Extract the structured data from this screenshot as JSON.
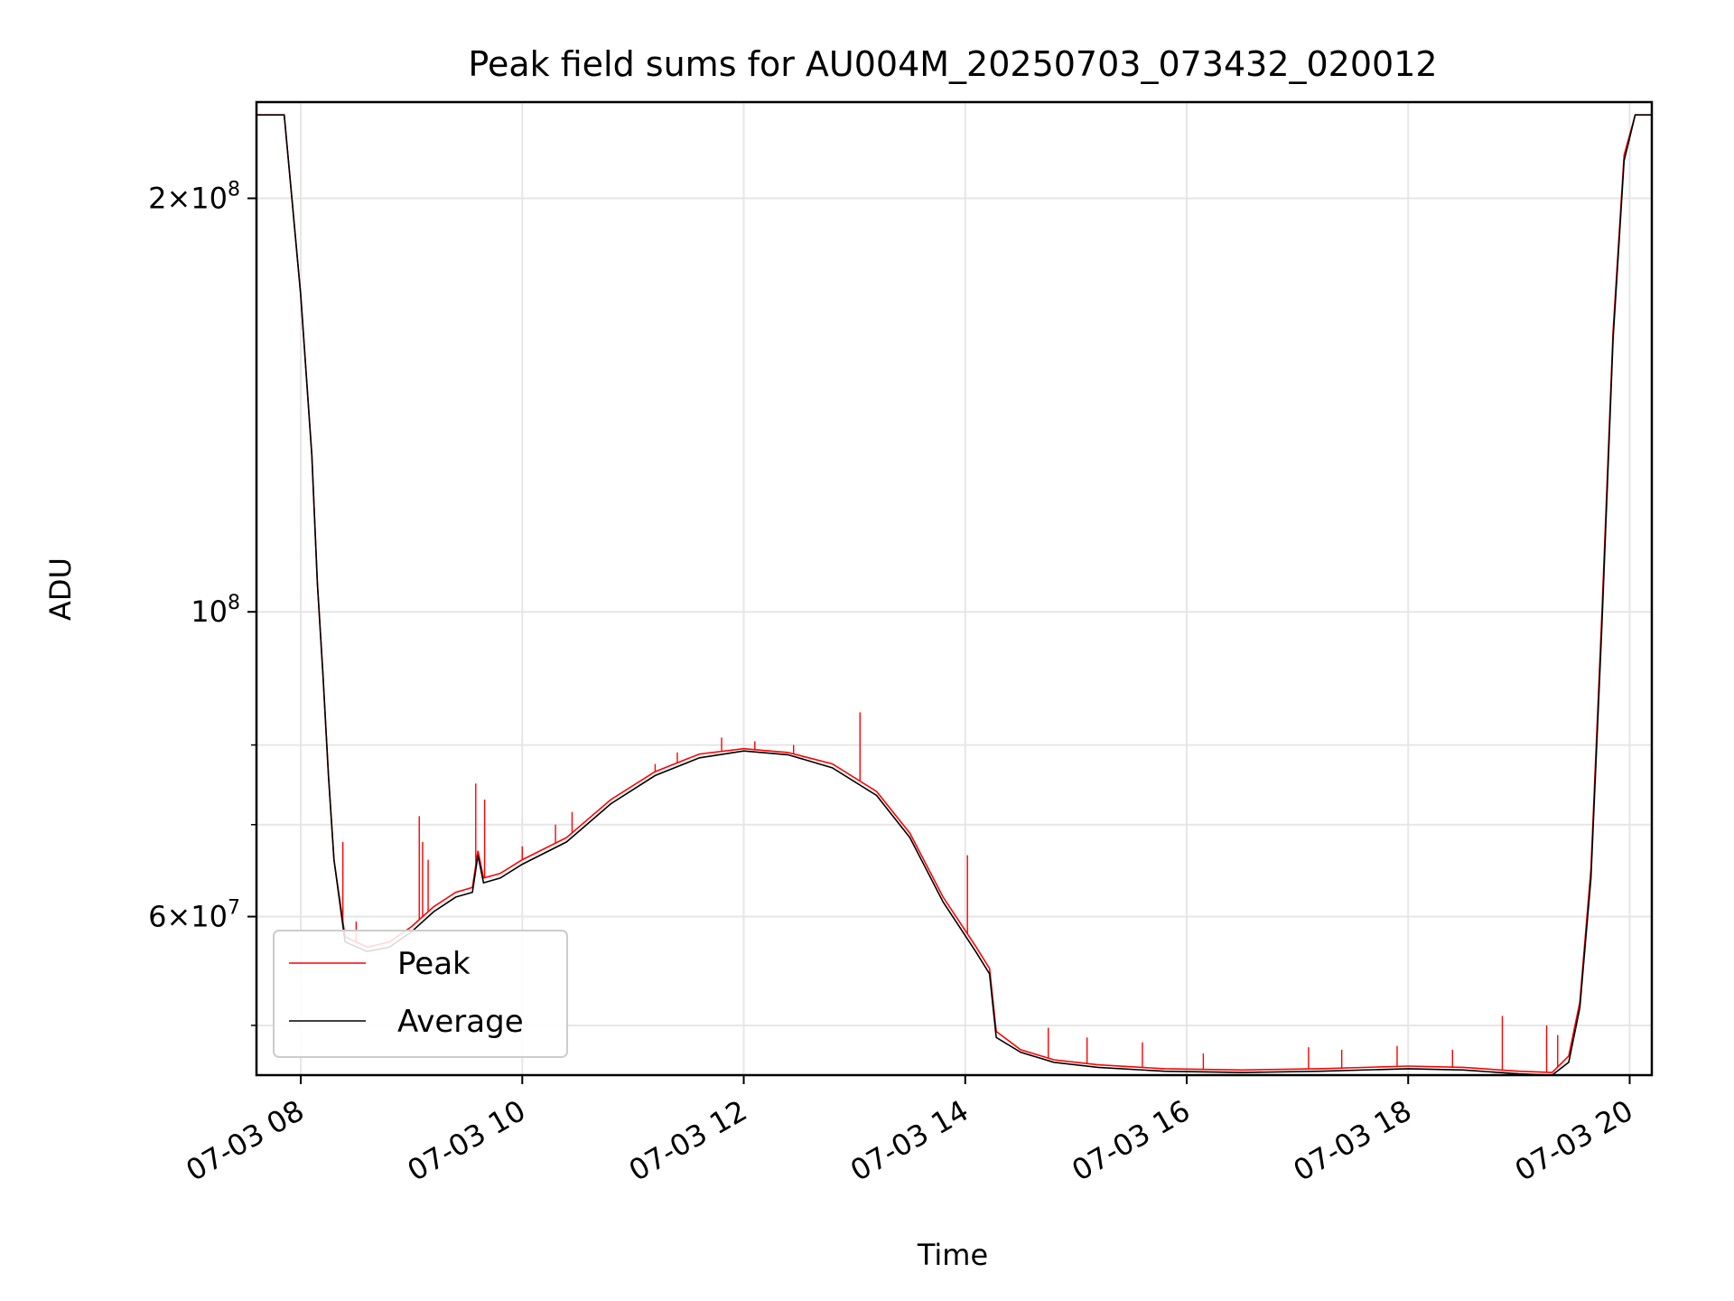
{
  "chart_data": {
    "type": "line",
    "title": "Peak field sums for AU004M_20250703_073432_020012",
    "xlabel": "Time",
    "ylabel": "ADU",
    "x_range_hours": [
      7.6,
      20.2
    ],
    "y_range": [
      46000000,
      235000000
    ],
    "y_scale": "log",
    "grid": true,
    "legend_position": "lower-left",
    "x_ticks": [
      {
        "hour": 8,
        "label": "07-03 08"
      },
      {
        "hour": 10,
        "label": "07-03 10"
      },
      {
        "hour": 12,
        "label": "07-03 12"
      },
      {
        "hour": 14,
        "label": "07-03 14"
      },
      {
        "hour": 16,
        "label": "07-03 16"
      },
      {
        "hour": 18,
        "label": "07-03 18"
      },
      {
        "hour": 20,
        "label": "07-03 20"
      }
    ],
    "y_major_ticks": [
      {
        "value": 60000000,
        "mantissa": "6",
        "exponent": "7"
      },
      {
        "value": 100000000,
        "mantissa": "",
        "exponent": "8"
      },
      {
        "value": 200000000,
        "mantissa": "2",
        "exponent": "8"
      }
    ],
    "y_minor_ticks": [
      50000000,
      70000000,
      80000000
    ],
    "series": [
      {
        "name": "Peak",
        "color": "#ff0000",
        "points": [
          [
            7.6,
            230000000
          ],
          [
            7.85,
            230000000
          ],
          [
            7.92,
            200000000
          ],
          [
            8.0,
            170000000
          ],
          [
            8.1,
            130000000
          ],
          [
            8.15,
            105000000
          ],
          [
            8.2,
            90000000
          ],
          [
            8.25,
            76000000
          ],
          [
            8.3,
            66000000
          ],
          [
            8.4,
            58000000
          ],
          [
            8.6,
            57000000
          ],
          [
            8.8,
            57500000
          ],
          [
            9.0,
            59000000
          ],
          [
            9.2,
            61000000
          ],
          [
            9.4,
            62500000
          ],
          [
            9.55,
            63000000
          ],
          [
            9.6,
            67000000
          ],
          [
            9.65,
            64000000
          ],
          [
            9.8,
            64500000
          ],
          [
            10.0,
            66000000
          ],
          [
            10.4,
            68500000
          ],
          [
            10.8,
            73000000
          ],
          [
            11.2,
            76500000
          ],
          [
            11.6,
            78800000
          ],
          [
            12.0,
            79500000
          ],
          [
            12.4,
            79000000
          ],
          [
            12.8,
            77500000
          ],
          [
            13.2,
            74000000
          ],
          [
            13.5,
            69000000
          ],
          [
            13.8,
            62000000
          ],
          [
            14.1,
            57000000
          ],
          [
            14.22,
            55000000
          ],
          [
            14.28,
            49500000
          ],
          [
            14.5,
            48000000
          ],
          [
            14.8,
            47200000
          ],
          [
            15.2,
            46800000
          ],
          [
            15.8,
            46500000
          ],
          [
            16.5,
            46400000
          ],
          [
            17.2,
            46500000
          ],
          [
            18.0,
            46700000
          ],
          [
            18.5,
            46600000
          ],
          [
            19.0,
            46300000
          ],
          [
            19.3,
            46200000
          ],
          [
            19.45,
            47500000
          ],
          [
            19.55,
            52000000
          ],
          [
            19.65,
            65000000
          ],
          [
            19.75,
            100000000
          ],
          [
            19.85,
            160000000
          ],
          [
            19.95,
            215000000
          ],
          [
            20.05,
            230000000
          ],
          [
            20.2,
            230000000
          ]
        ],
        "spikes": [
          [
            8.38,
            68000000
          ],
          [
            8.5,
            59500000
          ],
          [
            9.07,
            71000000
          ],
          [
            9.1,
            68000000
          ],
          [
            9.15,
            66000000
          ],
          [
            9.58,
            75000000
          ],
          [
            9.66,
            73000000
          ],
          [
            10.0,
            67500000
          ],
          [
            10.3,
            70000000
          ],
          [
            10.45,
            71500000
          ],
          [
            11.2,
            77500000
          ],
          [
            11.4,
            79000000
          ],
          [
            11.8,
            81000000
          ],
          [
            12.1,
            80500000
          ],
          [
            12.45,
            80000000
          ],
          [
            13.05,
            84500000
          ],
          [
            14.02,
            66500000
          ],
          [
            14.75,
            49800000
          ],
          [
            15.1,
            49000000
          ],
          [
            15.6,
            48600000
          ],
          [
            16.15,
            47700000
          ],
          [
            17.1,
            48200000
          ],
          [
            17.4,
            48000000
          ],
          [
            17.9,
            48300000
          ],
          [
            18.4,
            48000000
          ],
          [
            18.85,
            50800000
          ],
          [
            19.25,
            50000000
          ],
          [
            19.35,
            49200000
          ]
        ]
      },
      {
        "name": "Average",
        "color": "#000000",
        "points": [
          [
            7.6,
            230000000
          ],
          [
            7.85,
            230000000
          ],
          [
            7.92,
            200000000
          ],
          [
            8.0,
            170000000
          ],
          [
            8.1,
            130000000
          ],
          [
            8.15,
            105000000
          ],
          [
            8.2,
            90000000
          ],
          [
            8.25,
            76000000
          ],
          [
            8.3,
            66000000
          ],
          [
            8.4,
            57500000
          ],
          [
            8.6,
            56600000
          ],
          [
            8.8,
            57000000
          ],
          [
            9.0,
            58500000
          ],
          [
            9.2,
            60500000
          ],
          [
            9.4,
            62000000
          ],
          [
            9.55,
            62500000
          ],
          [
            9.6,
            66500000
          ],
          [
            9.65,
            63500000
          ],
          [
            9.8,
            64000000
          ],
          [
            10.0,
            65500000
          ],
          [
            10.4,
            68000000
          ],
          [
            10.8,
            72500000
          ],
          [
            11.2,
            76000000
          ],
          [
            11.6,
            78300000
          ],
          [
            12.0,
            79200000
          ],
          [
            12.4,
            78700000
          ],
          [
            12.8,
            77000000
          ],
          [
            13.2,
            73500000
          ],
          [
            13.5,
            68500000
          ],
          [
            13.8,
            61500000
          ],
          [
            14.1,
            56500000
          ],
          [
            14.22,
            54500000
          ],
          [
            14.28,
            49000000
          ],
          [
            14.5,
            47800000
          ],
          [
            14.8,
            47000000
          ],
          [
            15.2,
            46600000
          ],
          [
            15.8,
            46300000
          ],
          [
            16.5,
            46200000
          ],
          [
            17.2,
            46300000
          ],
          [
            18.0,
            46500000
          ],
          [
            18.5,
            46400000
          ],
          [
            19.0,
            46100000
          ],
          [
            19.3,
            46000000
          ],
          [
            19.45,
            47000000
          ],
          [
            19.55,
            51500000
          ],
          [
            19.65,
            64000000
          ],
          [
            19.75,
            98000000
          ],
          [
            19.85,
            158000000
          ],
          [
            19.95,
            213000000
          ],
          [
            20.05,
            230000000
          ],
          [
            20.2,
            230000000
          ]
        ]
      }
    ]
  }
}
